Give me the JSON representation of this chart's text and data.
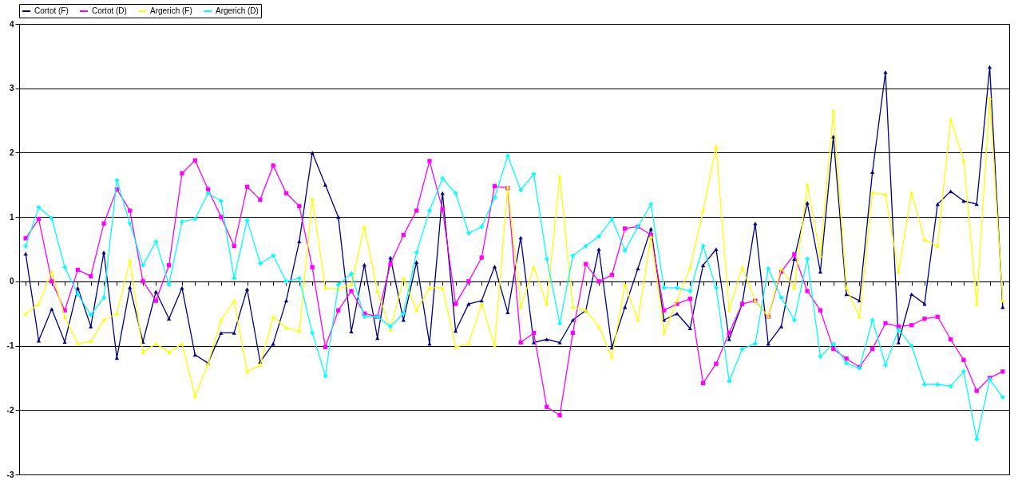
{
  "chart_data": {
    "type": "line",
    "categories": [
      null,
      null,
      null,
      null,
      null,
      null,
      null,
      null,
      null,
      null,
      null,
      null,
      null,
      null,
      null,
      null,
      null,
      null,
      null,
      null,
      null,
      null,
      null,
      null,
      null,
      null,
      null,
      null,
      null,
      null,
      null,
      null,
      null,
      null,
      null,
      null,
      null,
      null,
      null,
      null,
      null,
      null,
      null,
      null,
      null,
      null,
      null,
      null,
      null,
      null,
      null,
      null,
      null,
      null,
      null,
      null,
      null,
      null,
      null,
      null,
      null,
      null,
      null,
      null,
      null,
      null,
      null,
      null,
      null,
      null,
      null,
      null,
      null,
      null,
      null,
      null
    ],
    "ylim": [
      -3,
      4
    ],
    "yticks": [
      -3,
      -2,
      -1,
      0,
      1,
      2,
      3,
      4
    ],
    "grid": "y",
    "legend": "top",
    "series": [
      {
        "name": "Cortot (F)",
        "color": "#000080",
        "marker": "triangle",
        "values": [
          0.43,
          -0.92,
          -0.43,
          -0.94,
          -0.1,
          -0.7,
          0.45,
          -1.19,
          -0.09,
          -0.94,
          -0.16,
          -0.58,
          -0.1,
          -1.14,
          -1.27,
          -0.8,
          -0.8,
          -0.12,
          -1.25,
          -0.97,
          -0.3,
          0.62,
          2.0,
          1.5,
          1.0,
          -0.78,
          0.26,
          -0.88,
          0.37,
          -0.6,
          0.3,
          -0.97,
          1.37,
          -0.77,
          -0.35,
          -0.3,
          0.23,
          -0.48,
          0.68,
          -0.95,
          -0.9,
          -0.95,
          -0.6,
          -0.45,
          0.5,
          -1.03,
          -0.4,
          0.2,
          0.82,
          -0.6,
          -0.5,
          -0.73,
          0.25,
          0.5,
          -0.9,
          -0.35,
          0.9,
          -0.97,
          -0.7,
          0.35,
          1.22,
          0.15,
          2.25,
          -0.2,
          -0.3,
          1.7,
          3.25,
          -0.95,
          -0.2,
          -0.35,
          1.2,
          1.4,
          1.25,
          1.2,
          3.33,
          -0.4
        ]
      },
      {
        "name": "Cortot (D)",
        "color": "#ff00ff",
        "marker": "square",
        "values": [
          0.67,
          0.97,
          0.0,
          -0.45,
          0.18,
          0.08,
          0.9,
          1.43,
          1.1,
          0.0,
          -0.3,
          0.25,
          1.68,
          1.88,
          1.43,
          1.0,
          0.55,
          1.47,
          1.27,
          1.8,
          1.37,
          1.17,
          0.22,
          -1.02,
          -0.45,
          -0.15,
          -0.5,
          -0.55,
          0.27,
          0.72,
          1.1,
          1.87,
          1.12,
          -0.35,
          0.0,
          0.37,
          1.48,
          1.45,
          -0.95,
          -0.8,
          -1.95,
          -2.08,
          -0.8,
          0.27,
          0.0,
          0.1,
          0.82,
          0.85,
          0.72,
          -0.45,
          -0.35,
          -0.27,
          -1.58,
          -1.28,
          -0.8,
          -0.35,
          -0.3,
          -0.55,
          0.15,
          0.42,
          -0.15,
          -0.45,
          -1.05,
          -1.2,
          -1.33,
          -1.05,
          -0.65,
          -0.7,
          -0.68,
          -0.58,
          -0.55,
          -0.9,
          -1.22,
          -1.7,
          -1.5,
          -1.4
        ]
      },
      {
        "name": "Argerich (F)",
        "color": "#ffff00",
        "marker": "triangle",
        "values": [
          -0.5,
          -0.35,
          0.15,
          -0.55,
          -0.97,
          -0.93,
          -0.6,
          -0.5,
          0.33,
          -1.1,
          -0.97,
          -1.1,
          -0.97,
          -1.78,
          -1.28,
          -0.6,
          -0.3,
          -1.4,
          -1.3,
          -0.55,
          -0.72,
          -0.77,
          1.28,
          -0.1,
          -0.12,
          -0.05,
          0.85,
          -0.15,
          -0.75,
          0.05,
          -0.45,
          -0.1,
          -0.1,
          -1.02,
          -0.97,
          -0.35,
          -1.0,
          1.47,
          -0.4,
          0.22,
          -0.35,
          1.63,
          -0.4,
          -0.45,
          -0.7,
          -1.18,
          -0.05,
          -0.6,
          0.7,
          -0.8,
          -0.3,
          0.22,
          1.1,
          2.1,
          -0.45,
          0.22,
          -0.3,
          -0.55,
          0.2,
          -0.1,
          1.5,
          0.4,
          2.65,
          -0.1,
          -0.55,
          1.38,
          1.35,
          0.15,
          1.38,
          0.65,
          0.55,
          2.52,
          1.88,
          -0.35,
          2.85,
          -0.3
        ]
      },
      {
        "name": "Argerich (D)",
        "color": "#00ffff",
        "marker": "cross",
        "values": [
          0.55,
          1.15,
          0.98,
          0.22,
          -0.2,
          -0.52,
          -0.25,
          1.57,
          0.9,
          0.25,
          0.62,
          -0.05,
          0.93,
          0.97,
          1.37,
          1.25,
          0.05,
          0.95,
          0.28,
          0.4,
          0.0,
          0.05,
          -0.8,
          -1.47,
          -0.05,
          0.12,
          -0.55,
          -0.55,
          -0.7,
          -0.5,
          0.45,
          1.1,
          1.6,
          1.37,
          0.75,
          0.85,
          1.3,
          1.95,
          1.42,
          1.67,
          0.35,
          -0.65,
          0.4,
          0.55,
          0.7,
          0.97,
          0.48,
          0.85,
          1.2,
          -0.1,
          -0.1,
          -0.15,
          0.55,
          -0.1,
          -1.55,
          -1.05,
          -0.97,
          0.2,
          -0.25,
          -0.6,
          0.35,
          -1.17,
          -0.97,
          -1.27,
          -1.35,
          -0.6,
          -1.3,
          -0.75,
          -1.0,
          -1.6,
          -1.6,
          -1.63,
          -1.4,
          -2.45,
          -1.52,
          -1.8
        ]
      }
    ]
  }
}
